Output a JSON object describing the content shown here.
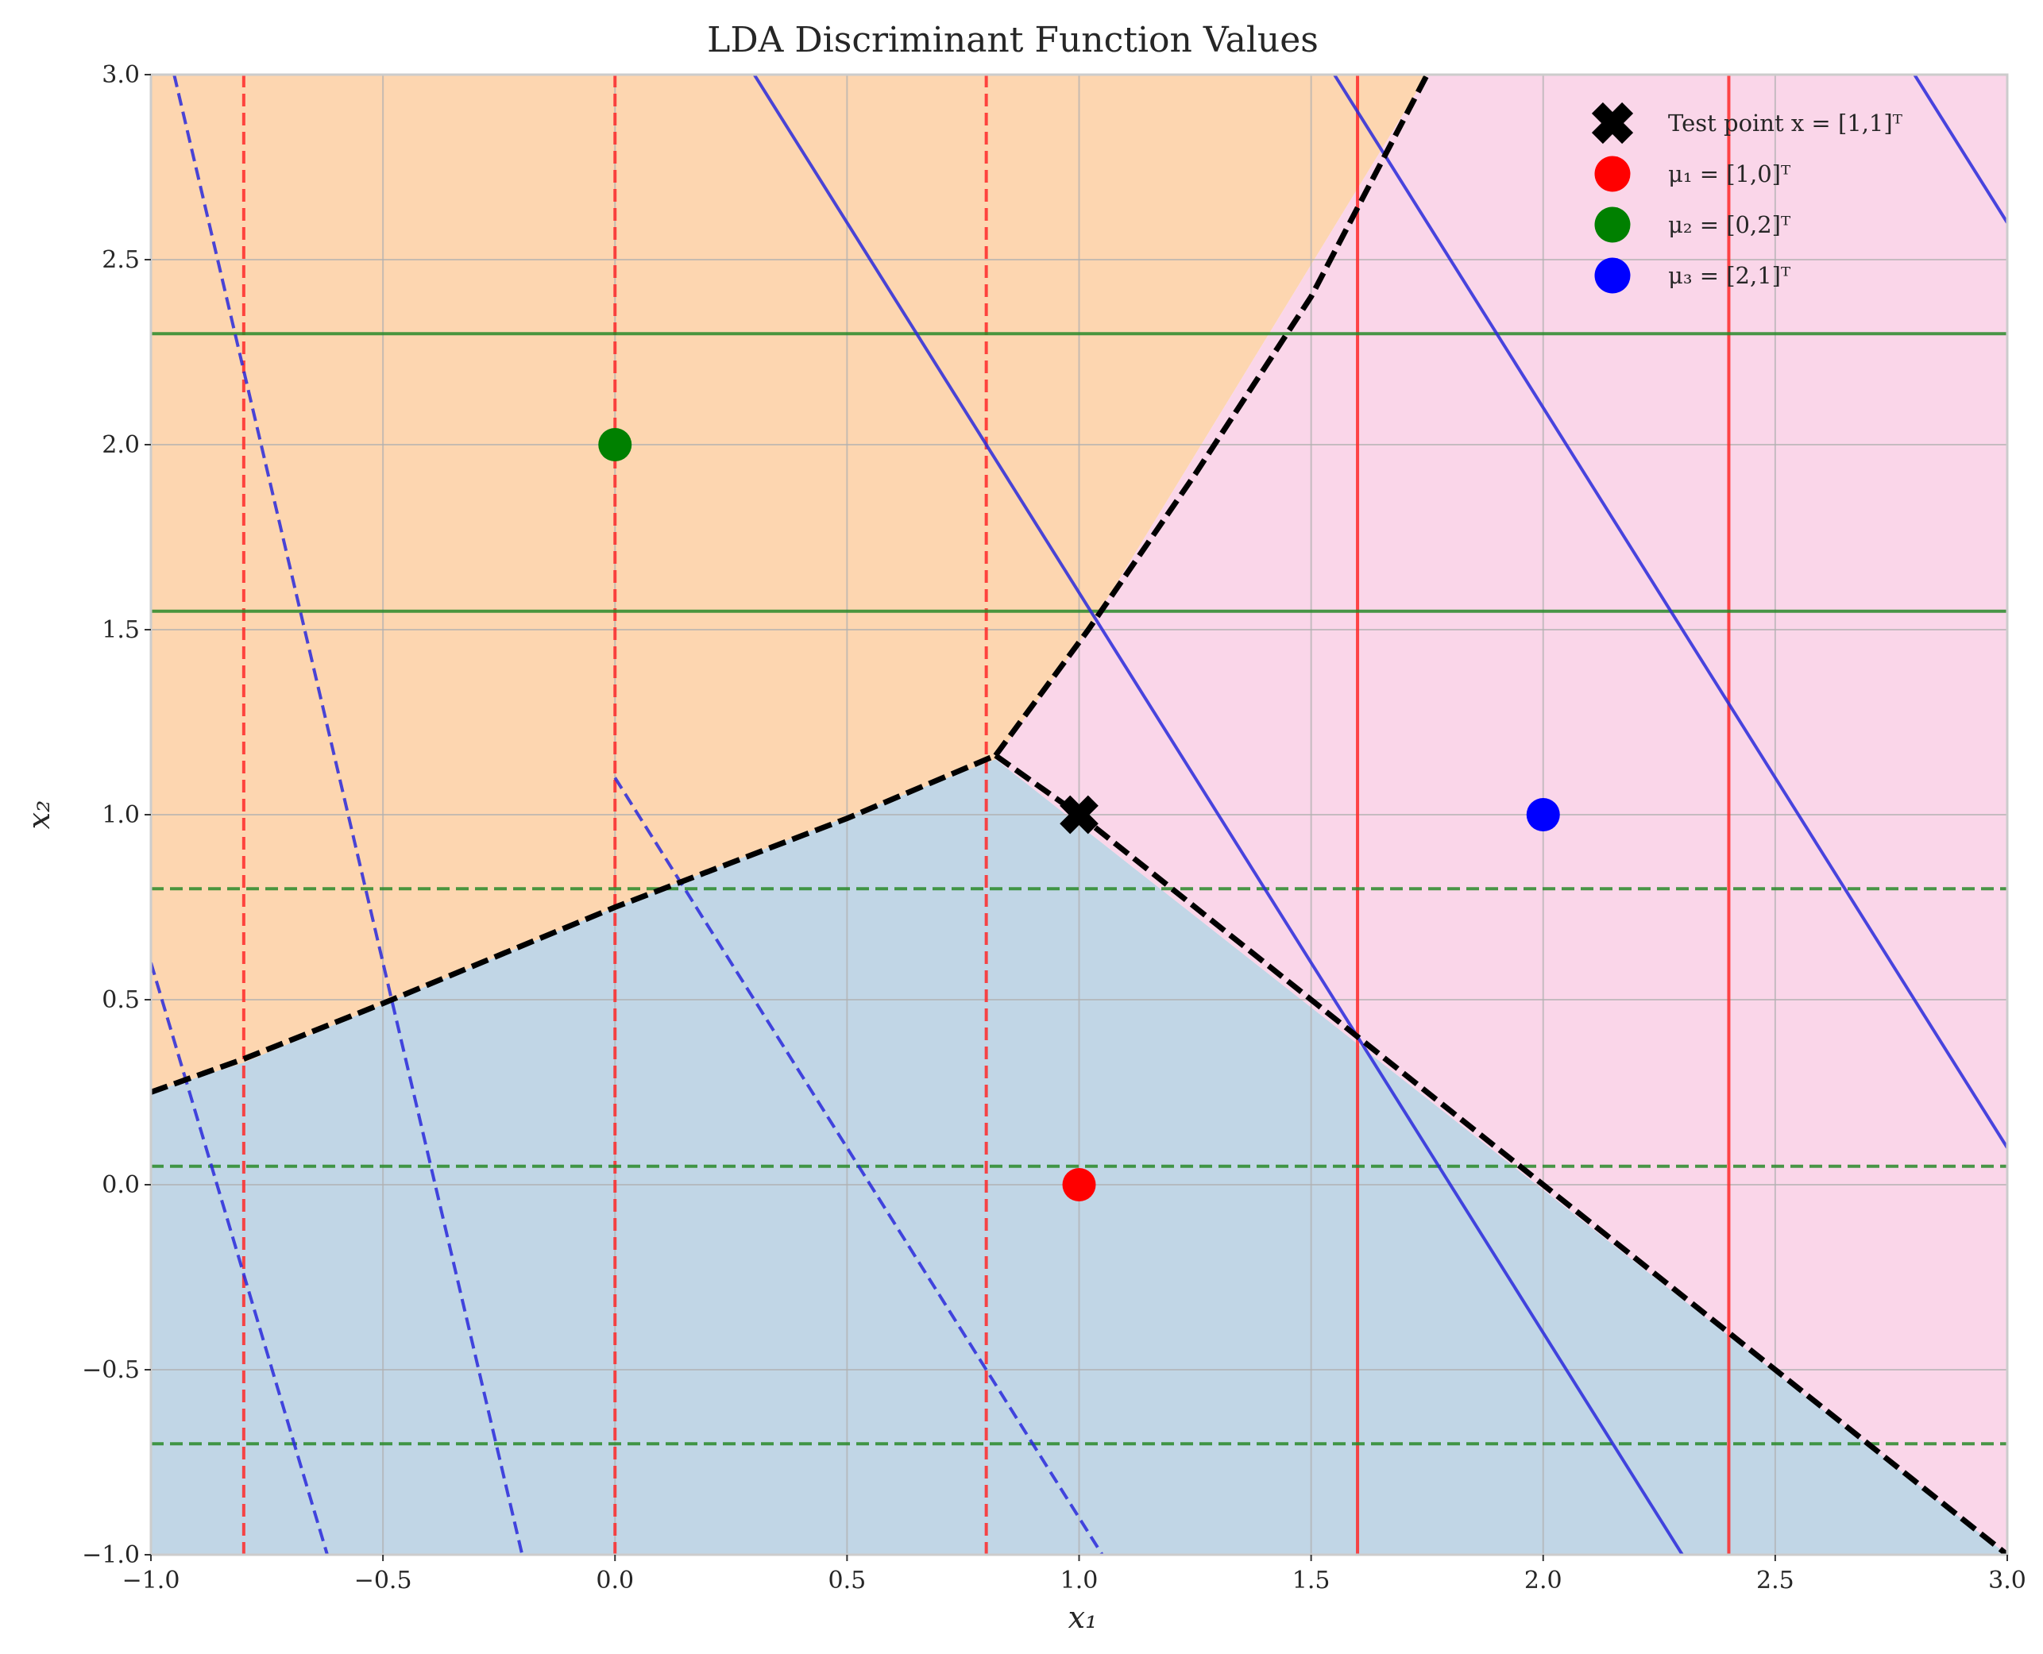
{
  "chart_data": {
    "type": "line",
    "title": "LDA Discriminant Function Values",
    "xlabel": "x₁",
    "ylabel": "x₂",
    "xlim": [
      -1,
      3
    ],
    "ylim": [
      -1,
      3
    ],
    "x_ticks": [
      -1.0,
      -0.5,
      0.0,
      0.5,
      1.0,
      1.5,
      2.0,
      2.5,
      3.0
    ],
    "y_ticks": [
      -1.0,
      -0.5,
      0.0,
      0.5,
      1.0,
      1.5,
      2.0,
      2.5,
      3.0
    ],
    "x_tick_labels": [
      "−1.0",
      "−0.5",
      "0.0",
      "0.5",
      "1.0",
      "1.5",
      "2.0",
      "2.5",
      "3.0"
    ],
    "y_tick_labels": [
      "−1.0",
      "−0.5",
      "0.0",
      "0.5",
      "1.0",
      "1.5",
      "2.0",
      "2.5",
      "3.0"
    ],
    "grid": true,
    "legend_position": "top-right",
    "regions": [
      {
        "class": 1,
        "color": "#c1d6e6",
        "polygon": [
          [
            -1,
            -1
          ],
          [
            -1,
            0.25
          ],
          [
            -0.8,
            0.33
          ],
          [
            0,
            0.75
          ],
          [
            0.82,
            1.15
          ],
          [
            3,
            -1
          ]
        ]
      },
      {
        "class": 2,
        "color": "#fdd6b0",
        "polygon": [
          [
            -1,
            0.25
          ],
          [
            -1,
            3
          ],
          [
            1.75,
            3
          ],
          [
            1.02,
            1.5
          ],
          [
            0.82,
            1.15
          ],
          [
            0,
            0.75
          ],
          [
            -0.8,
            0.33
          ]
        ]
      },
      {
        "class": 3,
        "color": "#fad6e9",
        "polygon": [
          [
            1.75,
            3
          ],
          [
            3,
            3
          ],
          [
            3,
            -1
          ],
          [
            0.82,
            1.15
          ],
          [
            1.02,
            1.5
          ]
        ]
      }
    ],
    "boundaries": [
      {
        "points": [
          [
            -1,
            0.25
          ],
          [
            -0.8,
            0.34
          ],
          [
            -0.5,
            0.49
          ],
          [
            0,
            0.75
          ],
          [
            0.5,
            0.99
          ],
          [
            0.82,
            1.16
          ]
        ]
      },
      {
        "points": [
          [
            0.82,
            1.16
          ],
          [
            1.02,
            1.5
          ],
          [
            1.25,
            1.92
          ],
          [
            1.5,
            2.4
          ],
          [
            1.75,
            3
          ]
        ]
      },
      {
        "points": [
          [
            0.82,
            1.16
          ],
          [
            1,
            1
          ],
          [
            1.6,
            0.4
          ],
          [
            2,
            0
          ],
          [
            3,
            -1
          ]
        ]
      }
    ],
    "contours": [
      {
        "color": "#ff2a2a",
        "style": "dashed",
        "orientation": "vertical",
        "value": -0.8
      },
      {
        "color": "#ff2a2a",
        "style": "dashed",
        "orientation": "vertical",
        "value": 0.0
      },
      {
        "color": "#ff2a2a",
        "style": "dashed",
        "orientation": "vertical",
        "value": 0.8
      },
      {
        "color": "#ff2a2a",
        "style": "solid",
        "orientation": "vertical",
        "value": 1.6
      },
      {
        "color": "#ff2a2a",
        "style": "solid",
        "orientation": "vertical",
        "value": 2.4
      },
      {
        "color": "#2a8a2a",
        "style": "solid",
        "orientation": "horizontal",
        "value": 2.3
      },
      {
        "color": "#2a8a2a",
        "style": "solid",
        "orientation": "horizontal",
        "value": 1.55
      },
      {
        "color": "#2a8a2a",
        "style": "dashed",
        "orientation": "horizontal",
        "value": 0.8
      },
      {
        "color": "#2a8a2a",
        "style": "dashed",
        "orientation": "horizontal",
        "value": 0.05
      },
      {
        "color": "#2a8a2a",
        "style": "dashed",
        "orientation": "horizontal",
        "value": -0.7
      },
      {
        "color": "#2a2adc",
        "style": "dashed",
        "orientation": "diagonal",
        "points": [
          [
            -0.95,
            3
          ],
          [
            -0.2,
            -1
          ]
        ]
      },
      {
        "color": "#2a2adc",
        "style": "dashed",
        "orientation": "diagonal",
        "points": [
          [
            -1,
            0.6
          ],
          [
            -0.62,
            -1
          ]
        ]
      },
      {
        "color": "#2a2adc",
        "style": "dashed",
        "orientation": "diagonal",
        "points": [
          [
            -1,
            3.0
          ],
          [
            -1,
            3.0
          ]
        ]
      },
      {
        "color": "#2a2adc",
        "style": "dashed",
        "orientation": "diagonal",
        "points": [
          [
            0.0,
            1.1
          ],
          [
            1.05,
            -1
          ]
        ]
      },
      {
        "color": "#2a2adc",
        "style": "solid",
        "orientation": "diagonal",
        "points": [
          [
            0.3,
            3
          ],
          [
            2.3,
            -1
          ]
        ]
      },
      {
        "color": "#2a2adc",
        "style": "solid",
        "orientation": "diagonal",
        "points": [
          [
            1.55,
            3
          ],
          [
            3,
            0.1
          ]
        ]
      },
      {
        "color": "#2a2adc",
        "style": "solid",
        "orientation": "diagonal",
        "points": [
          [
            2.8,
            3
          ],
          [
            3,
            2.6
          ]
        ]
      }
    ],
    "points": [
      {
        "name": "Test point x = [1,1]ᵀ",
        "x": 1,
        "y": 1,
        "color": "#000000",
        "marker": "X"
      },
      {
        "name": "μ₁ = [1,0]ᵀ",
        "x": 1,
        "y": 0,
        "color": "#ff0000",
        "marker": "o"
      },
      {
        "name": "μ₂ = [0,2]ᵀ",
        "x": 0,
        "y": 2,
        "color": "#008000",
        "marker": "o"
      },
      {
        "name": "μ₃ = [2,1]ᵀ",
        "x": 2,
        "y": 1,
        "color": "#0000ff",
        "marker": "o"
      }
    ]
  }
}
